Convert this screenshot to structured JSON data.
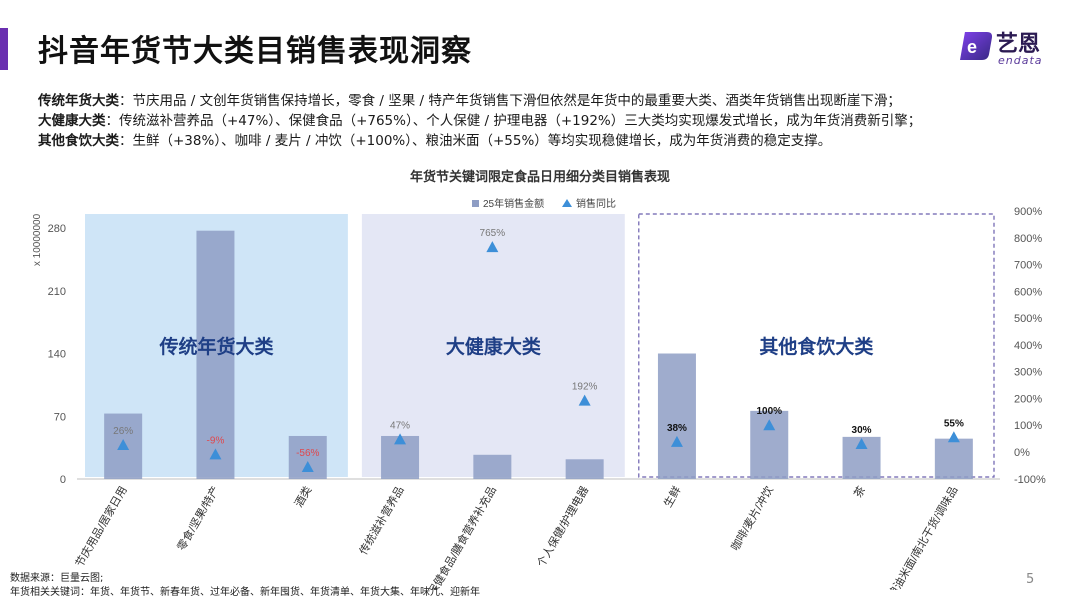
{
  "header": {
    "title": "抖音年货节大类目销售表现洞察"
  },
  "logo": {
    "cn": "艺恩",
    "en": "endata"
  },
  "summary": [
    {
      "label": "传统年货大类",
      "text": "：节庆用品 / 文创年货销售保持增长，零食 / 坚果 / 特产年货销售下滑但依然是年货中的最重要大类、酒类年货销售出现断崖下滑；"
    },
    {
      "label": "大健康大类",
      "text": "：传统滋补营养品（+47%）、保健食品（+765%）、个人保健 / 护理电器（+192%）三大类均实现爆发式增长，成为年货消费新引擎；"
    },
    {
      "label": "其他食饮大类",
      "text": "：生鲜（+38%）、咖啡 / 麦片 / 冲饮（+100%）、粮油米面（+55%）等均实现稳健增长，成为年货消费的稳定支撑。"
    }
  ],
  "chart_data": {
    "type": "bar",
    "title": "年货节关键词限定食品日用细分类目销售表现",
    "categories": [
      "节庆用品/居家日用",
      "零食/坚果/特产",
      "酒类",
      "传统滋补营养品",
      "保健食品/膳食营养补充品",
      "个人保健/护理电器",
      "生鲜",
      "咖啡/麦片/冲饮",
      "茶",
      "粮油米面/南北干货/调味品"
    ],
    "series": [
      {
        "name": "25年销售金额",
        "axis": "left",
        "mark": "bar",
        "color": "#8e9dc4",
        "values": [
          73,
          277,
          48,
          48,
          27,
          22,
          140,
          76,
          47,
          45
        ]
      },
      {
        "name": "销售同比",
        "axis": "right",
        "mark": "triangle",
        "color": "#3d8fd8",
        "values": [
          26,
          -9,
          -56,
          47,
          765,
          192,
          38,
          100,
          30,
          55
        ],
        "labels": [
          "26%",
          "-9%",
          "-56%",
          "47%",
          "765%",
          "192%",
          "38%",
          "100%",
          "30%",
          "55%"
        ]
      }
    ],
    "y_left": {
      "unit_label": "x 10000000",
      "ylim": [
        0,
        280
      ],
      "ticks": [
        "0",
        "70",
        "140",
        "210",
        "280"
      ]
    },
    "y_right": {
      "ylim": [
        -100,
        900
      ],
      "ticks": [
        "-100%",
        "0%",
        "100%",
        "200%",
        "300%",
        "400%",
        "500%",
        "600%",
        "700%",
        "800%",
        "900%"
      ]
    },
    "groups": [
      {
        "label": "传统年货大类",
        "from": 0,
        "to": 2,
        "style": "fill",
        "color": "#cfe5f7"
      },
      {
        "label": "大健康大类",
        "from": 3,
        "to": 5,
        "style": "fill",
        "color": "#e4e7f5"
      },
      {
        "label": "其他食饮大类",
        "from": 6,
        "to": 9,
        "style": "dashed",
        "color": "#6a5fae"
      }
    ],
    "legend": "top",
    "grid": false
  },
  "footer": {
    "source": "数据来源：巨量云图;",
    "keywords": "年货相关关键词：年货、年货节、新春年货、过年必备、新年囤货、年货清单、年货大集、年味儿、迎新年"
  },
  "page_number": "5"
}
